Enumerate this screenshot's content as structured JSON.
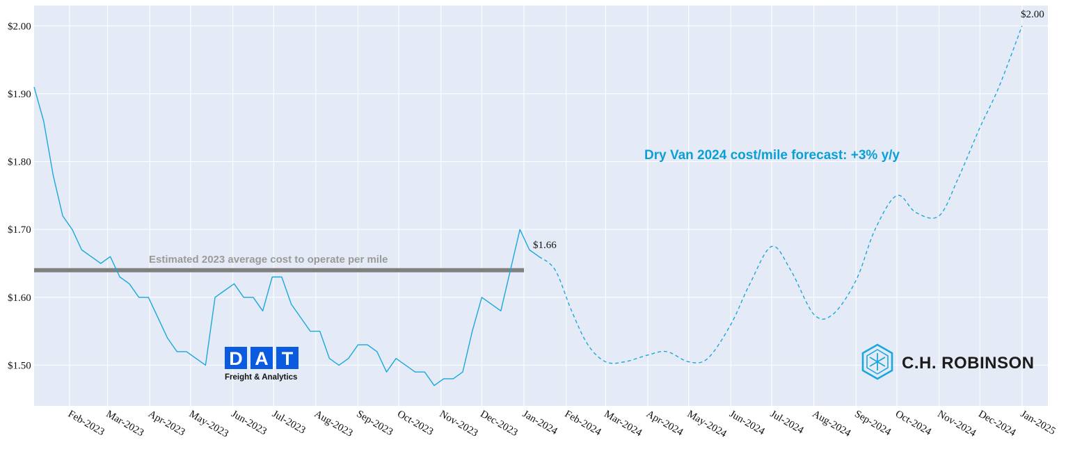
{
  "chart_data": {
    "type": "line",
    "title": "",
    "xlabel": "",
    "ylabel": "",
    "ylim": [
      1.44,
      2.03
    ],
    "y_ticks": [
      "$1.50",
      "$1.60",
      "$1.70",
      "$1.80",
      "$1.90",
      "$2.00"
    ],
    "y_tick_values": [
      1.5,
      1.6,
      1.7,
      1.8,
      1.9,
      2.0
    ],
    "x_range": [
      "2023-01-06",
      "2025-01-20"
    ],
    "x_ticks": [
      "Feb-2023",
      "Mar-2023",
      "Apr-2023",
      "May-2023",
      "Jun-2023",
      "Jul-2023",
      "Aug-2023",
      "Sep-2023",
      "Oct-2023",
      "Nov-2023",
      "Dec-2023",
      "Jan-2024",
      "Feb-2024",
      "Mar-2024",
      "Apr-2024",
      "May-2024",
      "Jun-2024",
      "Jul-2024",
      "Aug-2024",
      "Sep-2024",
      "Oct-2024",
      "Nov-2024",
      "Dec-2024",
      "Jan-2025"
    ],
    "x_tick_dates": [
      "2023-02-01",
      "2023-03-01",
      "2023-04-01",
      "2023-05-01",
      "2023-06-01",
      "2023-07-01",
      "2023-08-01",
      "2023-09-01",
      "2023-10-01",
      "2023-11-01",
      "2023-12-01",
      "2024-01-01",
      "2024-02-01",
      "2024-03-01",
      "2024-04-01",
      "2024-05-01",
      "2024-06-01",
      "2024-07-01",
      "2024-08-01",
      "2024-09-01",
      "2024-10-01",
      "2024-11-01",
      "2024-12-01",
      "2025-01-01"
    ],
    "grid": true,
    "colors": {
      "series": "#1aa7dc",
      "average": "#808080",
      "plot_bg": "#e5ebf6",
      "grid": "#ffffff"
    },
    "series": [
      {
        "style": "solid",
        "x": [
          "2023-01-06",
          "2023-01-13",
          "2023-01-20",
          "2023-01-27",
          "2023-02-03",
          "2023-02-10",
          "2023-02-17",
          "2023-02-24",
          "2023-03-03",
          "2023-03-10",
          "2023-03-17",
          "2023-03-24",
          "2023-03-31",
          "2023-04-07",
          "2023-04-14",
          "2023-04-21",
          "2023-04-28",
          "2023-05-05",
          "2023-05-12",
          "2023-05-19",
          "2023-05-26",
          "2023-06-02",
          "2023-06-09",
          "2023-06-16",
          "2023-06-23",
          "2023-06-30",
          "2023-07-07",
          "2023-07-14",
          "2023-07-21",
          "2023-07-28",
          "2023-08-04",
          "2023-08-11",
          "2023-08-18",
          "2023-08-25",
          "2023-09-01",
          "2023-09-08",
          "2023-09-15",
          "2023-09-22",
          "2023-09-29",
          "2023-10-06",
          "2023-10-13",
          "2023-10-20",
          "2023-10-27",
          "2023-11-03",
          "2023-11-10",
          "2023-11-17",
          "2023-11-24",
          "2023-12-01",
          "2023-12-08",
          "2023-12-15",
          "2023-12-22",
          "2023-12-29",
          "2024-01-05",
          "2024-01-12"
        ],
        "values": [
          1.91,
          1.86,
          1.78,
          1.72,
          1.7,
          1.67,
          1.66,
          1.65,
          1.66,
          1.63,
          1.62,
          1.6,
          1.6,
          1.57,
          1.54,
          1.52,
          1.52,
          1.51,
          1.5,
          1.6,
          1.61,
          1.62,
          1.6,
          1.6,
          1.58,
          1.63,
          1.63,
          1.59,
          1.57,
          1.55,
          1.55,
          1.51,
          1.5,
          1.51,
          1.53,
          1.53,
          1.52,
          1.49,
          1.51,
          1.5,
          1.49,
          1.49,
          1.47,
          1.48,
          1.48,
          1.49,
          1.55,
          1.6,
          1.59,
          1.58,
          1.64,
          1.7,
          1.67,
          1.66
        ]
      },
      {
        "style": "dashed",
        "x": [
          "2024-01-12",
          "2024-01-24",
          "2024-02-05",
          "2024-02-17",
          "2024-03-01",
          "2024-03-15",
          "2024-04-01",
          "2024-04-15",
          "2024-05-01",
          "2024-05-15",
          "2024-06-01",
          "2024-06-15",
          "2024-07-01",
          "2024-07-15",
          "2024-08-01",
          "2024-08-15",
          "2024-09-01",
          "2024-09-15",
          "2024-10-01",
          "2024-10-15",
          "2024-11-01",
          "2024-11-15",
          "2024-12-01",
          "2024-12-15",
          "2025-01-01"
        ],
        "values": [
          1.66,
          1.64,
          1.58,
          1.53,
          1.505,
          1.505,
          1.515,
          1.52,
          1.505,
          1.51,
          1.56,
          1.62,
          1.675,
          1.64,
          1.575,
          1.575,
          1.625,
          1.7,
          1.75,
          1.725,
          1.72,
          1.775,
          1.85,
          1.91,
          2.0
        ]
      }
    ],
    "reference_line": {
      "value": 1.64,
      "x_start": "2023-01-06",
      "x_end": "2024-01-01",
      "label": "Estimated 2023 average cost to operate per mile"
    },
    "annotations": [
      {
        "text": "$1.66",
        "x": "2024-01-01",
        "y": 1.66
      },
      {
        "text": "$2.00",
        "x": "2025-01-01",
        "y": 2.0
      },
      {
        "text": "Dry Van 2024 cost/mile forecast: +3% y/y"
      }
    ]
  },
  "logos": {
    "dat": {
      "letters": [
        "D",
        "A",
        "T"
      ],
      "subtitle": "Freight & Analytics",
      "color": "#0a5be0"
    },
    "chr": {
      "name": "C.H. ROBINSON",
      "color": "#1aa7dc"
    }
  }
}
